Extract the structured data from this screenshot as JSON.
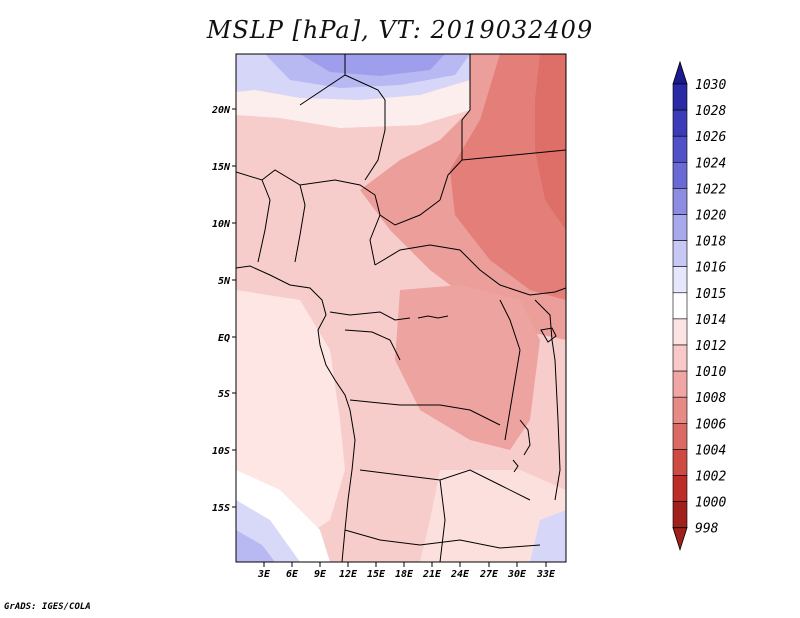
{
  "title": "MSLP [hPa], VT: 2019032409",
  "footer": "GrADS: IGES/COLA",
  "map": {
    "lat_labels": [
      "20N",
      "15N",
      "10N",
      "5N",
      "EQ",
      "5S",
      "10S",
      "15S"
    ],
    "lon_labels": [
      "3E",
      "6E",
      "9E",
      "12E",
      "15E",
      "18E",
      "21E",
      "24E",
      "27E",
      "30E",
      "33E"
    ]
  },
  "colorbar": {
    "levels": [
      "1030",
      "1028",
      "1026",
      "1024",
      "1022",
      "1020",
      "1018",
      "1016",
      "1015",
      "1014",
      "1012",
      "1010",
      "1008",
      "1006",
      "1004",
      "1002",
      "1000",
      "998"
    ],
    "colors": [
      "#1b1a8e",
      "#2a2aa6",
      "#3c3cb8",
      "#5050c8",
      "#6a6ad6",
      "#8c8ce2",
      "#a8a8ec",
      "#c8c8f6",
      "#e6e6fc",
      "#ffffff",
      "#fde4e4",
      "#f9c8c8",
      "#f0a6a4",
      "#e68a86",
      "#dc6a64",
      "#d04a44",
      "#be2c28",
      "#a0201c"
    ]
  }
}
